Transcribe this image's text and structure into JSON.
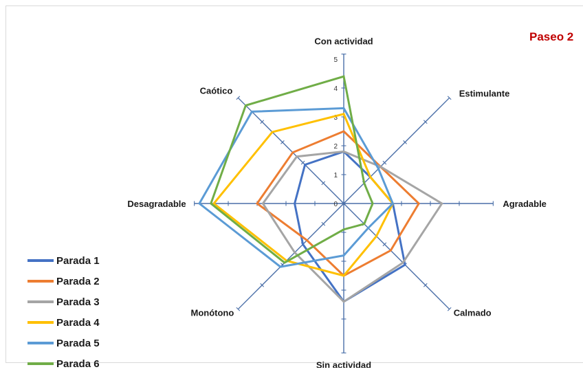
{
  "chart_data": {
    "type": "radar",
    "title": "Paseo 2",
    "axes": [
      "Con actividad",
      "Estimulante",
      "Agradable",
      "Calmado",
      "Sin actividad",
      "Monótono",
      "Desagradable",
      "Caótico"
    ],
    "rlim": [
      0,
      5
    ],
    "r_ticks": [
      "0",
      "1",
      "2",
      "3",
      "4",
      "5"
    ],
    "legend_position": "bottom-left",
    "series": [
      {
        "name": "Parada 1",
        "color": "#4472c4",
        "values": [
          1.8,
          1.3,
          1.7,
          3.0,
          3.4,
          2.0,
          1.7,
          1.9
        ]
      },
      {
        "name": "Parada 2",
        "color": "#ed7d31",
        "values": [
          2.5,
          1.8,
          2.6,
          2.3,
          2.5,
          1.8,
          3.0,
          2.5
        ]
      },
      {
        "name": "Parada 3",
        "color": "#a5a5a5",
        "values": [
          1.8,
          1.8,
          3.4,
          2.9,
          3.4,
          2.4,
          2.8,
          2.3
        ]
      },
      {
        "name": "Parada 4",
        "color": "#ffc000",
        "values": [
          3.1,
          1.3,
          1.7,
          1.6,
          2.5,
          2.8,
          4.5,
          3.5
        ]
      },
      {
        "name": "Parada 5",
        "color": "#5b9bd5",
        "values": [
          3.3,
          1.7,
          1.7,
          1.2,
          1.8,
          3.1,
          5.0,
          4.5
        ]
      },
      {
        "name": "Parada 6",
        "color": "#70ad47",
        "values": [
          4.4,
          1.0,
          1.0,
          1.0,
          0.9,
          2.9,
          4.6,
          4.8
        ]
      }
    ]
  }
}
